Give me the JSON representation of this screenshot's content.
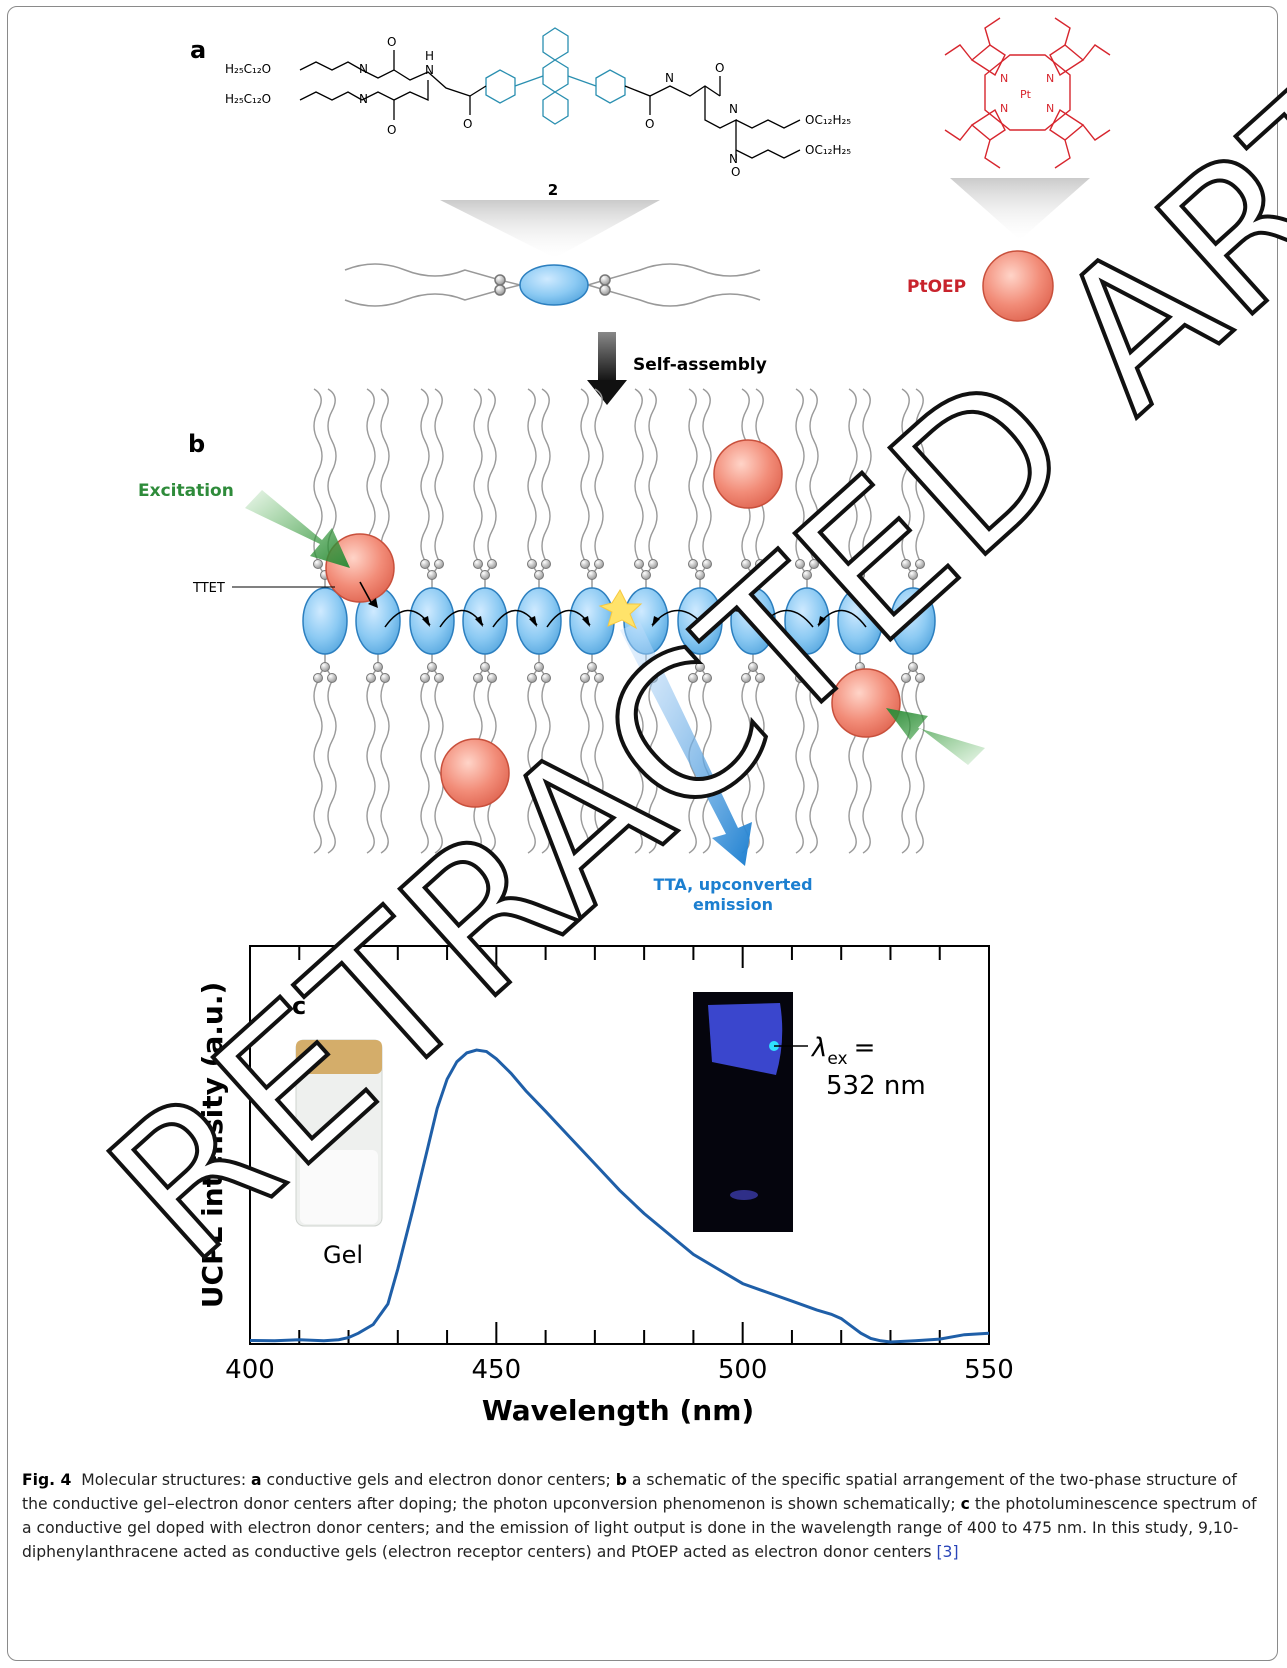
{
  "panel_a": {
    "label": "a",
    "compound_number": "2",
    "left_chains": [
      "H₂₅C₁₂O",
      "H₂₅C₁₂O"
    ],
    "right_chains": [
      "OC₁₂H₂₅",
      "OC₁₂H₂₅"
    ],
    "atoms": {
      "n": "N",
      "h": "H",
      "o": "O",
      "pt": "Pt"
    },
    "ptoep_label": "PtOEP",
    "self_assembly_label": "Self-assembly"
  },
  "panel_b": {
    "label": "b",
    "excitation_label": "Excitation",
    "ttet_label": "TTET",
    "tta_label_line1": "TTA, upconverted",
    "tta_label_line2": "emission"
  },
  "panel_c": {
    "label": "c",
    "gel_label": "Gel",
    "lambda_label": "λ",
    "lambda_sub": "ex",
    "lambda_eq": "=",
    "lambda_value": "532 nm"
  },
  "chart_data": {
    "type": "line",
    "xlabel": "Wavelength (nm)",
    "ylabel": "UCPL intensity (a.u.)",
    "xlim": [
      400,
      550
    ],
    "xticks": [
      400,
      450,
      500,
      550
    ],
    "series": [
      {
        "color": "#1f5fa8",
        "x": [
          400,
          405,
          410,
          415,
          418,
          420,
          422,
          425,
          428,
          430,
          433,
          436,
          438,
          440,
          442,
          444,
          446,
          448,
          450,
          453,
          456,
          460,
          465,
          470,
          475,
          480,
          485,
          490,
          495,
          500,
          505,
          510,
          515,
          518,
          520,
          522,
          524,
          526,
          528,
          530,
          535,
          540,
          545,
          550
        ],
        "y": [
          0.005,
          0.004,
          0.008,
          0.004,
          0.008,
          0.015,
          0.03,
          0.06,
          0.13,
          0.25,
          0.45,
          0.66,
          0.8,
          0.9,
          0.96,
          0.99,
          1.0,
          0.995,
          0.97,
          0.92,
          0.86,
          0.79,
          0.7,
          0.61,
          0.52,
          0.44,
          0.37,
          0.3,
          0.25,
          0.2,
          0.17,
          0.14,
          0.11,
          0.095,
          0.08,
          0.055,
          0.03,
          0.012,
          0.004,
          0.0,
          0.004,
          0.01,
          0.025,
          0.03
        ]
      }
    ]
  },
  "caption": {
    "fig": "Fig. 4",
    "t1": "Molecular structures: ",
    "a": "a",
    "t2": " conductive gels and electron donor centers; ",
    "b": "b",
    "t3": " a schematic of the specific spatial arrangement of the two-phase structure of the conductive gel–electron donor centers after doping; the photon upconversion phenomenon is shown schematically; ",
    "c": "c",
    "t4": " the photoluminescence spectrum of a conductive gel doped with electron donor centers; and the emission of light output is done in the wavelength range of 400 to 475 nm. In this study, 9,10-diphenylanthracene acted as conductive gels (electron receptor centers) and PtOEP acted as electron donor centers ",
    "ref": "[3]"
  },
  "watermark": "RETRACTED ARTICLE"
}
